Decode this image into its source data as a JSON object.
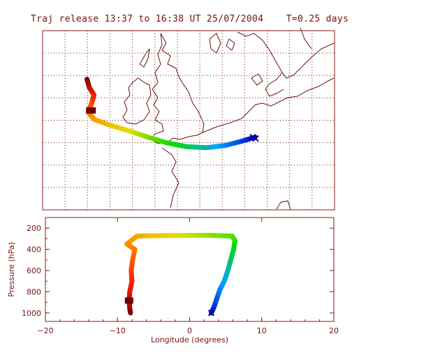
{
  "title": "Traj release 13:37 to 16:38 UT 25/07/2004    T=0.25 days",
  "chart_data": [
    {
      "type": "map",
      "title": "Traj release 13:37 to 16:38 UT 25/07/2004    T=0.25 days",
      "grid": true,
      "lon_range": [
        -12,
        13
      ],
      "lat_range": [
        45,
        62
      ],
      "trajectory": [
        {
          "lon": -8.2,
          "lat": 57.4
        },
        {
          "lon": -8.0,
          "lat": 56.6
        },
        {
          "lon": -7.6,
          "lat": 55.9
        },
        {
          "lon": -7.8,
          "lat": 55.1
        },
        {
          "lon": -8.1,
          "lat": 54.3
        },
        {
          "lon": -7.6,
          "lat": 53.6
        },
        {
          "lon": -6.4,
          "lat": 53.1
        },
        {
          "lon": -4.6,
          "lat": 52.5
        },
        {
          "lon": -3.0,
          "lat": 51.9
        },
        {
          "lon": -1.5,
          "lat": 51.4
        },
        {
          "lon": 0.3,
          "lat": 51.0
        },
        {
          "lon": 2.0,
          "lat": 50.9
        },
        {
          "lon": 3.6,
          "lat": 51.1
        },
        {
          "lon": 5.0,
          "lat": 51.5
        },
        {
          "lon": 6.2,
          "lat": 51.9
        }
      ],
      "start_marker": {
        "lon": 6.0,
        "lat": 51.9
      },
      "end_marker": {
        "lon": -7.8,
        "lat": 54.4
      }
    },
    {
      "type": "line",
      "xlabel": "Longitude  (degrees)",
      "ylabel": "Pressure  (hPa)",
      "xlim": [
        -20,
        20
      ],
      "ylim": [
        1080,
        100
      ],
      "x_ticks": [
        -20,
        -10,
        0,
        10,
        20
      ],
      "y_ticks": [
        200,
        400,
        600,
        800,
        1000
      ],
      "points": [
        {
          "x": 3.0,
          "y": 1000
        },
        {
          "x": 3.4,
          "y": 940
        },
        {
          "x": 3.8,
          "y": 860
        },
        {
          "x": 4.2,
          "y": 780
        },
        {
          "x": 4.8,
          "y": 700
        },
        {
          "x": 5.3,
          "y": 600
        },
        {
          "x": 5.7,
          "y": 500
        },
        {
          "x": 6.1,
          "y": 400
        },
        {
          "x": 6.3,
          "y": 320
        },
        {
          "x": 5.9,
          "y": 275
        },
        {
          "x": 3.0,
          "y": 268
        },
        {
          "x": 0.0,
          "y": 268
        },
        {
          "x": -3.0,
          "y": 270
        },
        {
          "x": -6.0,
          "y": 272
        },
        {
          "x": -7.3,
          "y": 275
        },
        {
          "x": -8.7,
          "y": 350
        },
        {
          "x": -7.6,
          "y": 400
        },
        {
          "x": -7.9,
          "y": 500
        },
        {
          "x": -8.1,
          "y": 600
        },
        {
          "x": -8.0,
          "y": 700
        },
        {
          "x": -8.3,
          "y": 800
        },
        {
          "x": -8.4,
          "y": 880
        },
        {
          "x": -8.3,
          "y": 960
        },
        {
          "x": -8.2,
          "y": 1000
        }
      ],
      "start_marker": {
        "x": 3.0,
        "y": 1000
      },
      "end_marker": {
        "x": -8.4,
        "y": 880
      }
    }
  ],
  "colors": {
    "frame": "#8b1a1a",
    "text": "#7a1010",
    "grid": "#7a1010",
    "coast": "#6a0f0f",
    "ramp": [
      "#0000c0",
      "#00a0ff",
      "#00e000",
      "#e0e000",
      "#ff8c00",
      "#ff2000",
      "#800000"
    ]
  }
}
